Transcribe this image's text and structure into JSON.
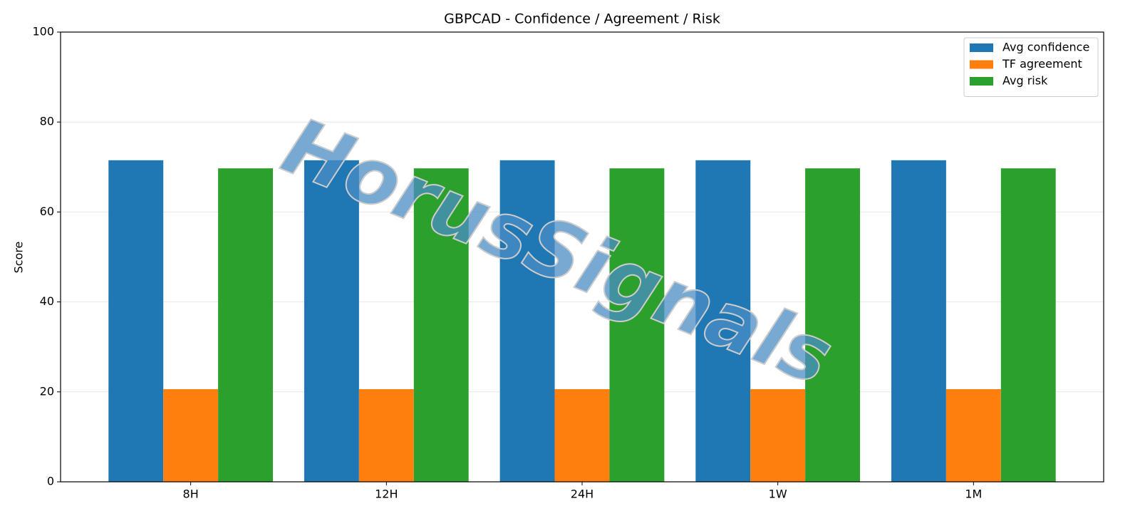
{
  "chart_data": {
    "type": "bar",
    "title": "GBPCAD - Confidence / Agreement / Risk",
    "ylabel": "Score",
    "watermark": "HorusSignals",
    "categories": [
      "8H",
      "12H",
      "24H",
      "1W",
      "1M"
    ],
    "series": [
      {
        "name": "Avg confidence",
        "color": "#1f77b4",
        "values": [
          71.5,
          71.5,
          71.5,
          71.5,
          71.5
        ]
      },
      {
        "name": "TF agreement",
        "color": "#ff7f0e",
        "values": [
          20.6,
          20.6,
          20.6,
          20.6,
          20.6
        ]
      },
      {
        "name": "Avg risk",
        "color": "#2ca02c",
        "values": [
          69.7,
          69.7,
          69.7,
          69.7,
          69.7
        ]
      }
    ],
    "ylim": [
      0,
      100
    ],
    "yticks": [
      0,
      20,
      40,
      60,
      80,
      100
    ],
    "grid": true,
    "legend": "upper right"
  }
}
